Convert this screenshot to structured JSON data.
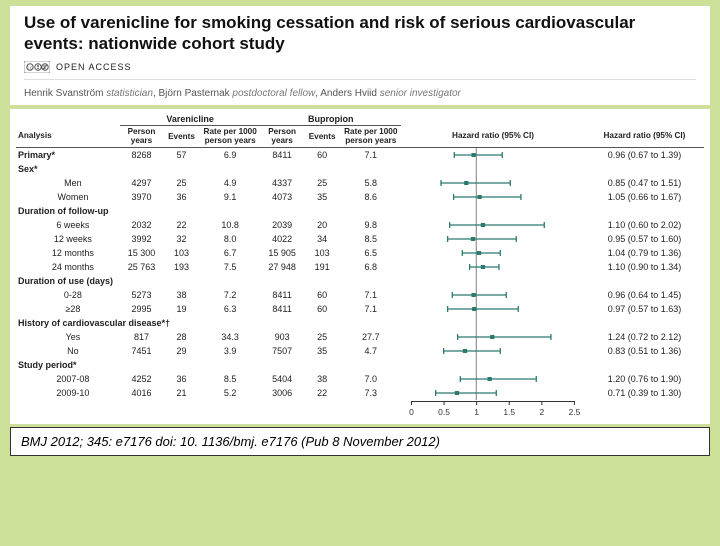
{
  "background_color": "#cde09a",
  "header": {
    "title": "Use of varenicline for smoking cessation and risk of serious cardiovascular events: nationwide cohort study",
    "open_access_label": "OPEN ACCESS",
    "authors_html": "Henrik Svanström <em>statistician</em>, Björn Pasternak <em>postdoctoral fellow</em>, Anders Hviid <em>senior investigator</em>"
  },
  "table": {
    "group_headers": {
      "varenicline": "Varenicline",
      "bupropion": "Bupropion"
    },
    "columns": {
      "analysis": "Analysis",
      "py": "Person years",
      "events": "Events",
      "rate": "Rate per 1000 person years",
      "hr_plot": "Hazard ratio (95% CI)",
      "hr_text": "Hazard ratio (95% CI)"
    },
    "plot": {
      "xmin": 0,
      "xmax": 2.5,
      "ticks": [
        0,
        0.5,
        1.0,
        1.5,
        2.0,
        2.5
      ],
      "ref_line": 1.0,
      "ref_line_color": "#888888",
      "marker_color": "#2a7a6f",
      "ci_line_color": "#2a7a6f",
      "axis_color": "#333333",
      "marker_size": 4
    },
    "rows": [
      {
        "type": "data",
        "label": "Primary*",
        "bold": true,
        "v_py": "8268",
        "v_ev": "57",
        "v_rate": "6.9",
        "b_py": "8411",
        "b_ev": "60",
        "b_rate": "7.1",
        "hr": 0.96,
        "lo": 0.67,
        "hi": 1.39,
        "hr_text": "0.96 (0.67 to 1.39)"
      },
      {
        "type": "group",
        "label": "Sex*"
      },
      {
        "type": "data",
        "label": "Men",
        "indent": true,
        "v_py": "4297",
        "v_ev": "25",
        "v_rate": "4.9",
        "b_py": "4337",
        "b_ev": "25",
        "b_rate": "5.8",
        "hr": 0.85,
        "lo": 0.47,
        "hi": 1.51,
        "hr_text": "0.85 (0.47 to 1.51)"
      },
      {
        "type": "data",
        "label": "Women",
        "indent": true,
        "v_py": "3970",
        "v_ev": "36",
        "v_rate": "9.1",
        "b_py": "4073",
        "b_ev": "35",
        "b_rate": "8.6",
        "hr": 1.05,
        "lo": 0.66,
        "hi": 1.67,
        "hr_text": "1.05 (0.66 to 1.67)"
      },
      {
        "type": "group",
        "label": "Duration of follow-up"
      },
      {
        "type": "data",
        "label": "6 weeks",
        "indent": true,
        "v_py": "2032",
        "v_ev": "22",
        "v_rate": "10.8",
        "b_py": "2039",
        "b_ev": "20",
        "b_rate": "9.8",
        "hr": 1.1,
        "lo": 0.6,
        "hi": 2.02,
        "hr_text": "1.10 (0.60 to 2.02)"
      },
      {
        "type": "data",
        "label": "12 weeks",
        "indent": true,
        "v_py": "3992",
        "v_ev": "32",
        "v_rate": "8.0",
        "b_py": "4022",
        "b_ev": "34",
        "b_rate": "8.5",
        "hr": 0.95,
        "lo": 0.57,
        "hi": 1.6,
        "hr_text": "0.95 (0.57 to 1.60)"
      },
      {
        "type": "data",
        "label": "12 months",
        "indent": true,
        "v_py": "15 300",
        "v_ev": "103",
        "v_rate": "6.7",
        "b_py": "15 905",
        "b_ev": "103",
        "b_rate": "6.5",
        "hr": 1.04,
        "lo": 0.79,
        "hi": 1.36,
        "hr_text": "1.04 (0.79 to 1.36)"
      },
      {
        "type": "data",
        "label": "24 months",
        "indent": true,
        "v_py": "25 763",
        "v_ev": "193",
        "v_rate": "7.5",
        "b_py": "27 948",
        "b_ev": "191",
        "b_rate": "6.8",
        "hr": 1.1,
        "lo": 0.9,
        "hi": 1.34,
        "hr_text": "1.10 (0.90 to 1.34)"
      },
      {
        "type": "group",
        "label": "Duration of use (days)"
      },
      {
        "type": "data",
        "label": "0-28",
        "indent": true,
        "v_py": "5273",
        "v_ev": "38",
        "v_rate": "7.2",
        "b_py": "8411",
        "b_ev": "60",
        "b_rate": "7.1",
        "hr": 0.96,
        "lo": 0.64,
        "hi": 1.45,
        "hr_text": "0.96 (0.64 to 1.45)"
      },
      {
        "type": "data",
        "label": "≥28",
        "indent": true,
        "v_py": "2995",
        "v_ev": "19",
        "v_rate": "6.3",
        "b_py": "8411",
        "b_ev": "60",
        "b_rate": "7.1",
        "hr": 0.97,
        "lo": 0.57,
        "hi": 1.63,
        "hr_text": "0.97 (0.57 to 1.63)"
      },
      {
        "type": "group",
        "label": "History of cardiovascular disease*†"
      },
      {
        "type": "data",
        "label": "Yes",
        "indent": true,
        "v_py": "817",
        "v_ev": "28",
        "v_rate": "34.3",
        "b_py": "903",
        "b_ev": "25",
        "b_rate": "27.7",
        "hr": 1.24,
        "lo": 0.72,
        "hi": 2.12,
        "hr_text": "1.24 (0.72 to 2.12)"
      },
      {
        "type": "data",
        "label": "No",
        "indent": true,
        "v_py": "7451",
        "v_ev": "29",
        "v_rate": "3.9",
        "b_py": "7507",
        "b_ev": "35",
        "b_rate": "4.7",
        "hr": 0.83,
        "lo": 0.51,
        "hi": 1.36,
        "hr_text": "0.83 (0.51 to 1.36)"
      },
      {
        "type": "group",
        "label": "Study period*"
      },
      {
        "type": "data",
        "label": "2007-08",
        "indent": true,
        "v_py": "4252",
        "v_ev": "36",
        "v_rate": "8.5",
        "b_py": "5404",
        "b_ev": "38",
        "b_rate": "7.0",
        "hr": 1.2,
        "lo": 0.76,
        "hi": 1.9,
        "hr_text": "1.20 (0.76 to 1.90)"
      },
      {
        "type": "data",
        "label": "2009-10",
        "indent": true,
        "v_py": "4016",
        "v_ev": "21",
        "v_rate": "5.2",
        "b_py": "3006",
        "b_ev": "22",
        "b_rate": "7.3",
        "hr": 0.71,
        "lo": 0.39,
        "hi": 1.3,
        "hr_text": "0.71 (0.39 to 1.30)"
      }
    ]
  },
  "citation": "BMJ 2012; 345: e7176 doi: 10. 1136/bmj. e7176 (Pub 8 November 2012)"
}
